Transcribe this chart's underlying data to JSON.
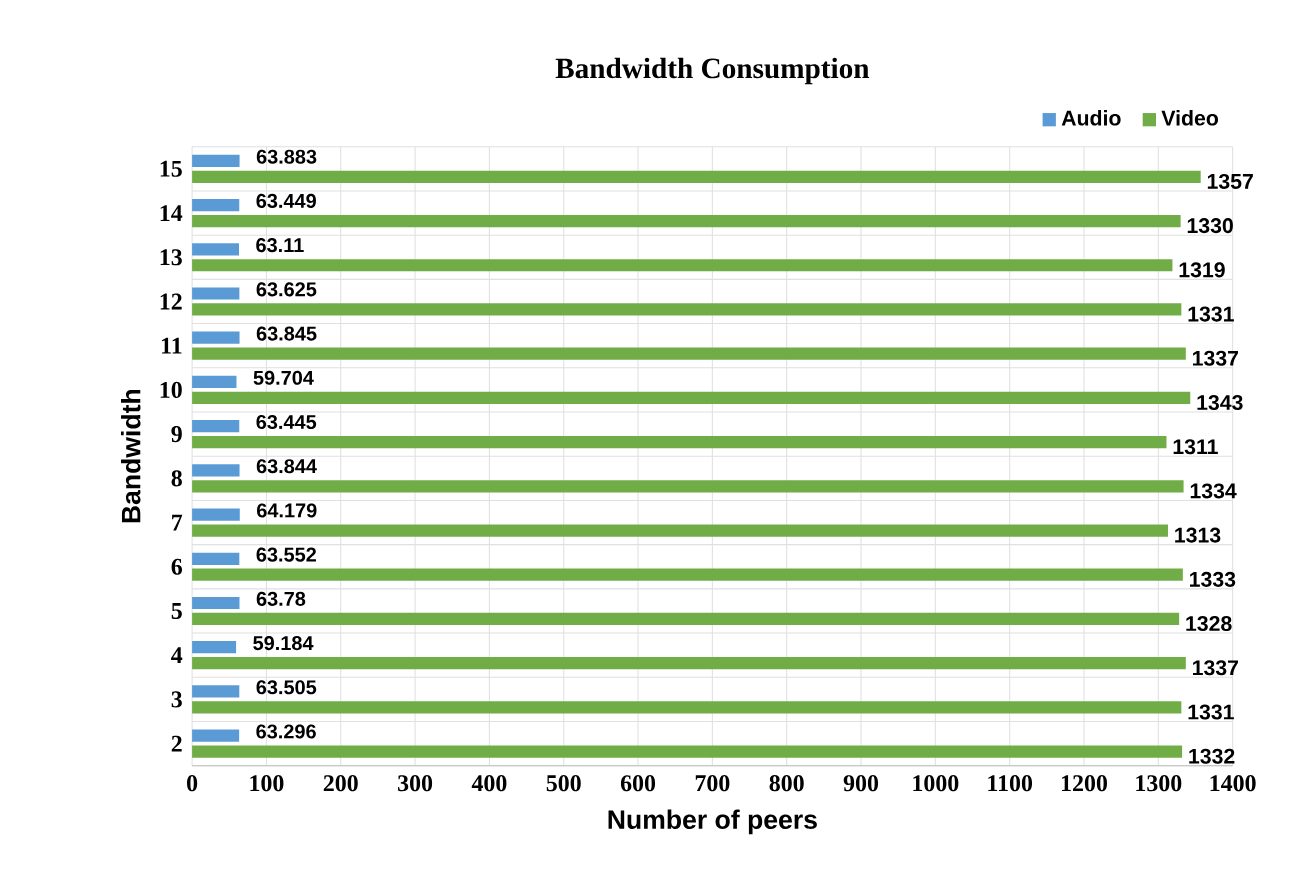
{
  "chart_data": {
    "type": "bar",
    "orientation": "horizontal",
    "title": "Bandwidth Consumption",
    "xlabel": "Number of peers",
    "ylabel": "Bandwidth",
    "categories": [
      "15",
      "14",
      "13",
      "12",
      "11",
      "10",
      "9",
      "8",
      "7",
      "6",
      "5",
      "4",
      "3",
      "2"
    ],
    "series": [
      {
        "name": "Audio",
        "color": "#5b9bd5",
        "values": [
          63.883,
          63.449,
          63.11,
          63.625,
          63.845,
          59.704,
          63.445,
          63.844,
          64.179,
          63.552,
          63.78,
          59.184,
          63.505,
          63.296
        ]
      },
      {
        "name": "Video",
        "color": "#70ad47",
        "values": [
          1357,
          1330,
          1319,
          1331,
          1337,
          1343,
          1311,
          1334,
          1313,
          1333,
          1328,
          1337,
          1331,
          1332
        ]
      }
    ],
    "xlim": [
      0,
      1400
    ],
    "xticks": [
      0,
      100,
      200,
      300,
      400,
      500,
      600,
      700,
      800,
      900,
      1000,
      1100,
      1200,
      1300,
      1400
    ],
    "grid": true,
    "legend": "top right",
    "data_labels": true
  }
}
